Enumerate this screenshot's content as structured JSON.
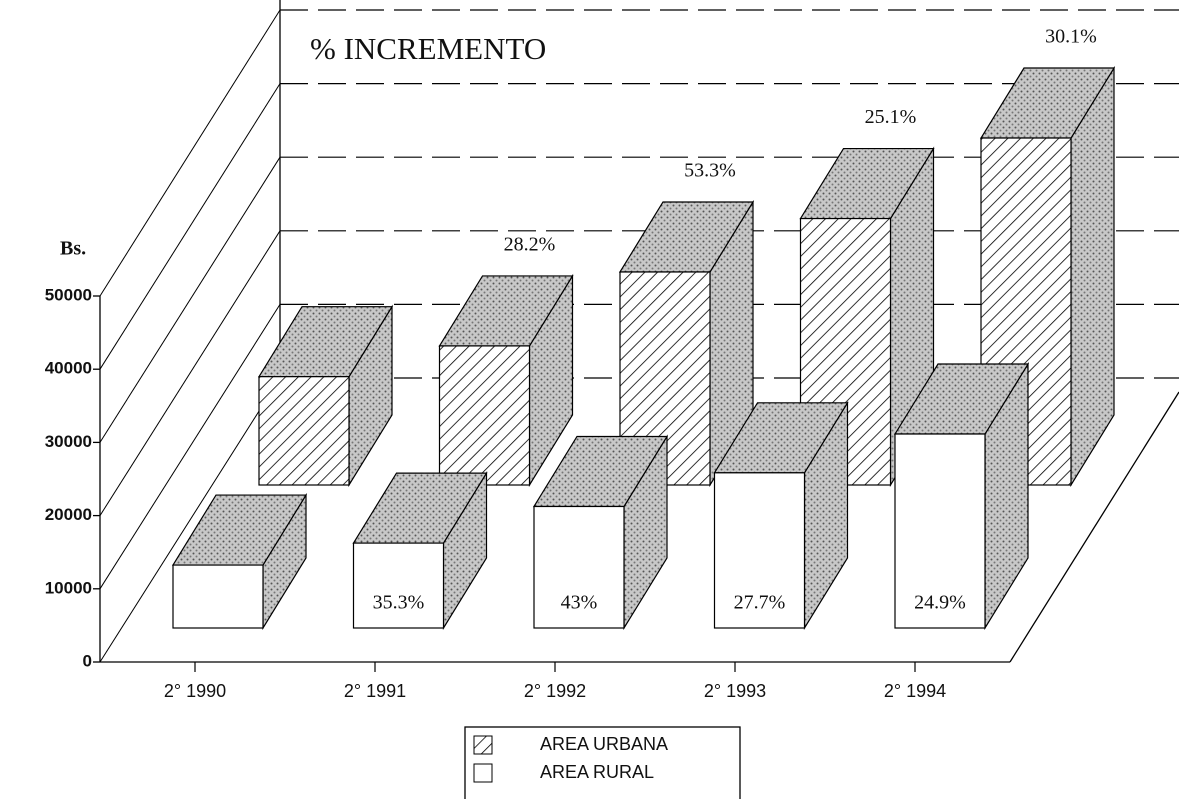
{
  "chart_data": {
    "type": "bar3d",
    "title": "% INCREMENTO",
    "y_label": "Bs.",
    "categories": [
      "2° 1990",
      "2° 1991",
      "2° 1992",
      "2° 1993",
      "2° 1994"
    ],
    "series": [
      {
        "name": "AREA URBANA",
        "color": "#000000",
        "hatch": true,
        "values": [
          14800,
          19000,
          29100,
          36400,
          47400
        ],
        "increments": [
          null,
          "28.2%",
          "53.3%",
          "25.1%",
          "30.1%"
        ]
      },
      {
        "name": "AREA RURAL",
        "color": "#ffffff",
        "hatch": false,
        "values": [
          8600,
          11600,
          16600,
          21200,
          26500
        ],
        "increments": [
          null,
          "35.3%",
          "43%",
          "27.7%",
          "24.9%"
        ]
      }
    ],
    "ylim": [
      0,
      50000
    ],
    "yticks": [
      0,
      10000,
      20000,
      30000,
      40000,
      50000
    ],
    "grid": true
  }
}
